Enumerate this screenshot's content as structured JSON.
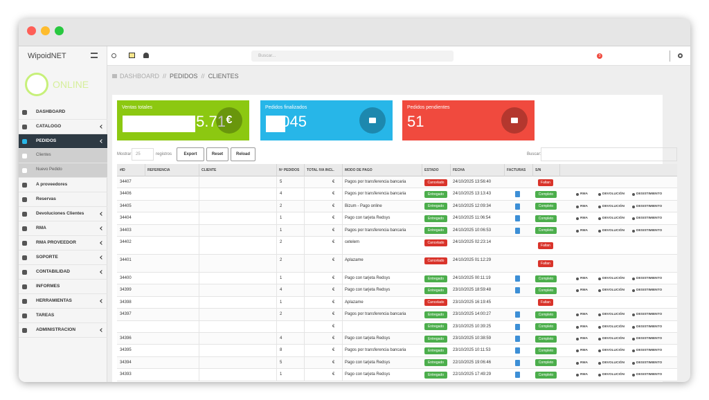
{
  "sidebar": {
    "brand": "WipoidNET",
    "status": "ONLINE",
    "items": [
      {
        "label": "DASHBOARD"
      },
      {
        "label": "CATALOGO",
        "arrow": true
      },
      {
        "label": "PEDIDOS",
        "arrow": true,
        "active": true
      },
      {
        "label": "Clientes",
        "sub": true,
        "active": true
      },
      {
        "label": "Nuevo Pedido",
        "sub": true
      },
      {
        "label": "A proveedores"
      },
      {
        "label": "Reservas"
      },
      {
        "label": "Devoluciones Clientes",
        "arrow": true
      },
      {
        "label": "RMA",
        "arrow": true
      },
      {
        "label": "RMA PROVEEDOR",
        "arrow": true
      },
      {
        "label": "SOPORTE",
        "arrow": true
      },
      {
        "label": "CONTABILIDAD",
        "arrow": true
      },
      {
        "label": "INFORMES"
      },
      {
        "label": "HERRAMIENTAS",
        "arrow": true
      },
      {
        "label": "TAREAS"
      },
      {
        "label": "ADMINISTRACION",
        "arrow": true
      }
    ]
  },
  "topbar": {
    "search": "Buscar...",
    "badge": "3"
  },
  "breadcrumb": [
    "DASHBOARD",
    "//",
    "PEDIDOS",
    "//",
    "CLIENTES"
  ],
  "stats": [
    {
      "label": "Ventas totales",
      "value": "5.71",
      "unit": "€",
      "color": "#8cc811"
    },
    {
      "label": "Pedidos finalizados",
      "value": "045",
      "color": "#27b6e8"
    },
    {
      "label": "Pedidos pendientes",
      "value": "51",
      "color": "#f04a3e"
    }
  ],
  "controls": {
    "show": "Mostrar",
    "length": "25",
    "records": "registros",
    "buttons": [
      "Export",
      "Reset",
      "Reload"
    ],
    "search": "Buscar:"
  },
  "table": {
    "columns": [
      "#ID",
      "REFERENCIA",
      "CLIENTE",
      "Nº PEDIDOS",
      "TOTAL IVA INCL.",
      "MODO DE PAGO",
      "ESTADO",
      "FECHA",
      "FACTURAS",
      "S/N"
    ],
    "rows": [
      {
        "id": "34407",
        "orders": "5",
        "total": "€",
        "payment": "Pagos por transferencia bancaria",
        "status": "Cancelado",
        "date": "24/10/2025 13:56:40",
        "invoice": false,
        "sn": "Faltan",
        "actions": []
      },
      {
        "id": "34406",
        "orders": "4",
        "total": "€",
        "payment": "Pagos por transferencia bancaria",
        "status": "Entregado",
        "date": "24/10/2025 13:13:43",
        "invoice": true,
        "sn": "Completo",
        "actions": [
          "RMA",
          "DEVOLUCIÓN",
          "DESISTIMIENTO"
        ]
      },
      {
        "id": "34405",
        "orders": "2",
        "total": "€",
        "payment": "Bizum - Pago online",
        "status": "Entregado",
        "date": "24/10/2025 12:09:34",
        "invoice": true,
        "sn": "Completo",
        "actions": [
          "RMA",
          "DEVOLUCIÓN",
          "DESISTIMIENTO"
        ]
      },
      {
        "id": "34404",
        "orders": "1",
        "total": "€",
        "payment": "Pago con tarjeta Redsys",
        "status": "Entregado",
        "date": "24/10/2025 11:06:54",
        "invoice": true,
        "sn": "Completo",
        "actions": [
          "RMA",
          "DEVOLUCIÓN",
          "DESISTIMIENTO"
        ]
      },
      {
        "id": "34403",
        "orders": "1",
        "total": "€",
        "payment": "Pagos por transferencia bancaria",
        "status": "Entregado",
        "date": "24/10/2025 10:06:53",
        "invoice": true,
        "sn": "Completo",
        "actions": [
          "RMA",
          "DEVOLUCIÓN",
          "DESISTIMIENTO"
        ]
      },
      {
        "id": "34402",
        "orders": "2",
        "total": "€",
        "payment": "cetelem",
        "status": "Cancelado",
        "date": "24/10/2025 02:23:14",
        "invoice": false,
        "sn": "Faltan",
        "actions": []
      },
      {
        "id": "34401",
        "orders": "2",
        "total": "€",
        "payment": "Aplazame",
        "status": "Cancelado",
        "date": "24/10/2025 01:12:29",
        "invoice": false,
        "sn": "Faltan",
        "actions": []
      },
      {
        "id": "34400",
        "orders": "1",
        "total": "€",
        "payment": "Pago con tarjeta Redsys",
        "status": "Entregado",
        "date": "24/10/2025 00:11:19",
        "invoice": true,
        "sn": "Completo",
        "actions": [
          "RMA",
          "DEVOLUCIÓN",
          "DESISTIMIENTO"
        ]
      },
      {
        "id": "34399",
        "orders": "4",
        "total": "€",
        "payment": "Pago con tarjeta Redsys",
        "status": "Entregado",
        "date": "23/10/2025 18:59:48",
        "invoice": true,
        "sn": "Completo",
        "actions": [
          "RMA",
          "DEVOLUCIÓN",
          "DESISTIMIENTO"
        ]
      },
      {
        "id": "34398",
        "orders": "1",
        "total": "€",
        "payment": "Aplazame",
        "status": "Cancelado",
        "date": "23/10/2025 16:19:45",
        "invoice": false,
        "sn": "Faltan",
        "actions": []
      },
      {
        "id": "34397",
        "orders": "2",
        "total": "€",
        "payment": "Pagos por transferencia bancaria",
        "status": "Entregado",
        "date": "23/10/2025 14:00:27",
        "invoice": true,
        "sn": "Completo",
        "actions": [
          "RMA",
          "DEVOLUCIÓN",
          "DESISTIMIENTO"
        ]
      },
      {
        "id": null,
        "orders": null,
        "total": "€",
        "payment": null,
        "status": "Entregado",
        "date": "23/10/2025 10:39:25",
        "invoice": true,
        "sn": "Completo",
        "actions": [
          "RMA",
          "DEVOLUCIÓN",
          "DESISTIMIENTO"
        ]
      },
      {
        "id": "34396",
        "orders": "4",
        "total": "€",
        "payment": "Pago con tarjeta Redsys",
        "status": "Entregado",
        "date": "23/10/2025 10:38:59",
        "invoice": true,
        "sn": "Completo",
        "actions": [
          "RMA",
          "DEVOLUCIÓN",
          "DESISTIMIENTO"
        ]
      },
      {
        "id": "34395",
        "orders": "8",
        "total": "€",
        "payment": "Pagos por transferencia bancaria",
        "status": "Entregado",
        "date": "23/10/2025 10:11:53",
        "invoice": true,
        "sn": "Completo",
        "actions": [
          "RMA",
          "DEVOLUCIÓN",
          "DESISTIMIENTO"
        ]
      },
      {
        "id": "34394",
        "orders": "5",
        "total": "€",
        "payment": "Pago con tarjeta Redsys",
        "status": "Entregado",
        "date": "22/10/2025 19:06:46",
        "invoice": true,
        "sn": "Completo",
        "actions": [
          "RMA",
          "DEVOLUCIÓN",
          "DESISTIMIENTO"
        ]
      },
      {
        "id": "34393",
        "orders": "1",
        "total": "€",
        "payment": "Pago con tarjeta Redsys",
        "status": "Entregado",
        "date": "22/10/2025 17:49:29",
        "invoice": true,
        "sn": "Completo",
        "actions": [
          "RMA",
          "DEVOLUCIÓN",
          "DESISTIMIENTO"
        ]
      }
    ]
  }
}
